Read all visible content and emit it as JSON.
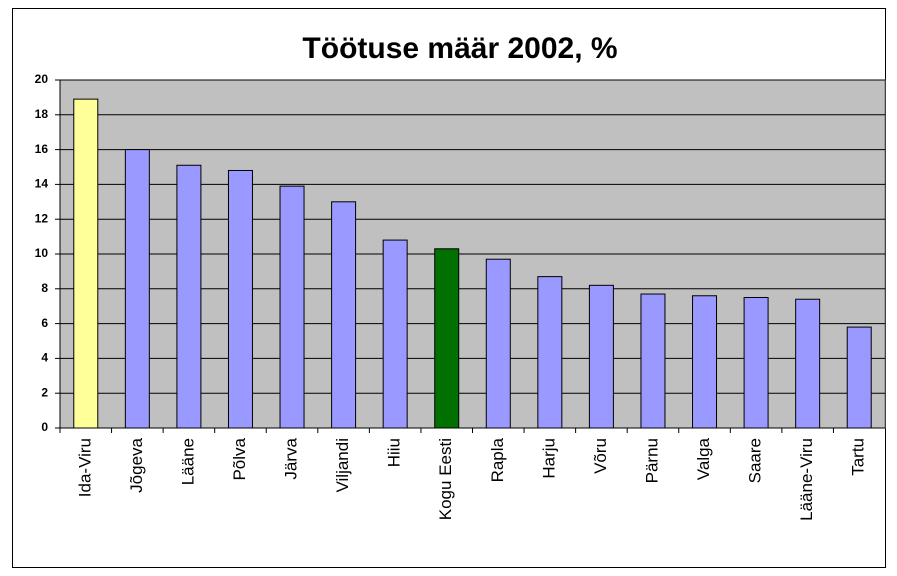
{
  "chart_data": {
    "type": "bar",
    "title": "Töötuse määr 2002, %",
    "categories": [
      "Ida-Viru",
      "Jõgeva",
      "Lääne",
      "Põlva",
      "Järva",
      "Viljandi",
      "Hiiu",
      "Kogu Eesti",
      "Rapla",
      "Harju",
      "Võru",
      "Pärnu",
      "Valga",
      "Saare",
      "Lääne-Viru",
      "Tartu"
    ],
    "values": [
      18.9,
      16.0,
      15.1,
      14.8,
      13.9,
      13.0,
      10.8,
      10.3,
      9.7,
      8.7,
      8.2,
      7.7,
      7.6,
      7.5,
      7.4,
      5.8
    ],
    "colors": [
      "#ffff99",
      "#9999ff",
      "#9999ff",
      "#9999ff",
      "#9999ff",
      "#9999ff",
      "#9999ff",
      "#007000",
      "#9999ff",
      "#9999ff",
      "#9999ff",
      "#9999ff",
      "#9999ff",
      "#9999ff",
      "#9999ff",
      "#9999ff"
    ],
    "ylim": [
      0,
      20
    ],
    "yticks": [
      0,
      2,
      4,
      6,
      8,
      10,
      12,
      14,
      16,
      18,
      20
    ],
    "grid": true
  }
}
